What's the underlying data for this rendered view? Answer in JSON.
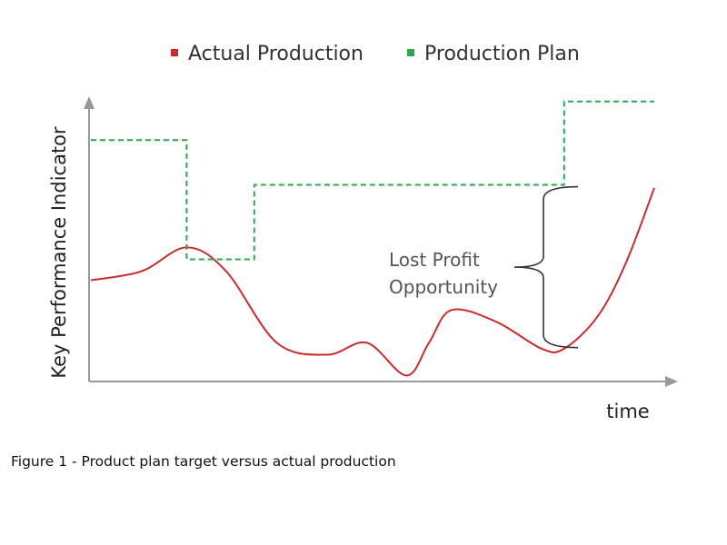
{
  "caption": "Figure 1 - Product plan target versus actual production",
  "chart_data": {
    "type": "line",
    "title": "",
    "xlabel": "time",
    "ylabel": "Key Performance Indicator",
    "xlim": [
      0,
      100
    ],
    "ylim": [
      0,
      100
    ],
    "grid": false,
    "legend_position": "top",
    "annotation": {
      "lines": [
        "Lost Profit",
        "Opportunity"
      ],
      "x": 80,
      "y_from": 12,
      "y_to": 66
    },
    "series": [
      {
        "name": "Actual Production",
        "color": "#cc2b2b",
        "style": "solid",
        "x": [
          0,
          9,
          17,
          24,
          33,
          42,
          49,
          56,
          60,
          64,
          72,
          80,
          84,
          90,
          95,
          100
        ],
        "y": [
          34,
          37,
          45,
          37,
          13,
          9,
          13,
          2,
          13,
          24,
          20,
          11,
          11,
          22,
          40,
          65
        ]
      },
      {
        "name": "Production Plan",
        "color": "#2aaa4e",
        "style": "dashed",
        "step": true,
        "x": [
          0,
          17,
          17,
          29,
          29,
          84,
          84,
          100
        ],
        "y": [
          81,
          81,
          41,
          41,
          66,
          66,
          94,
          94
        ]
      }
    ]
  }
}
